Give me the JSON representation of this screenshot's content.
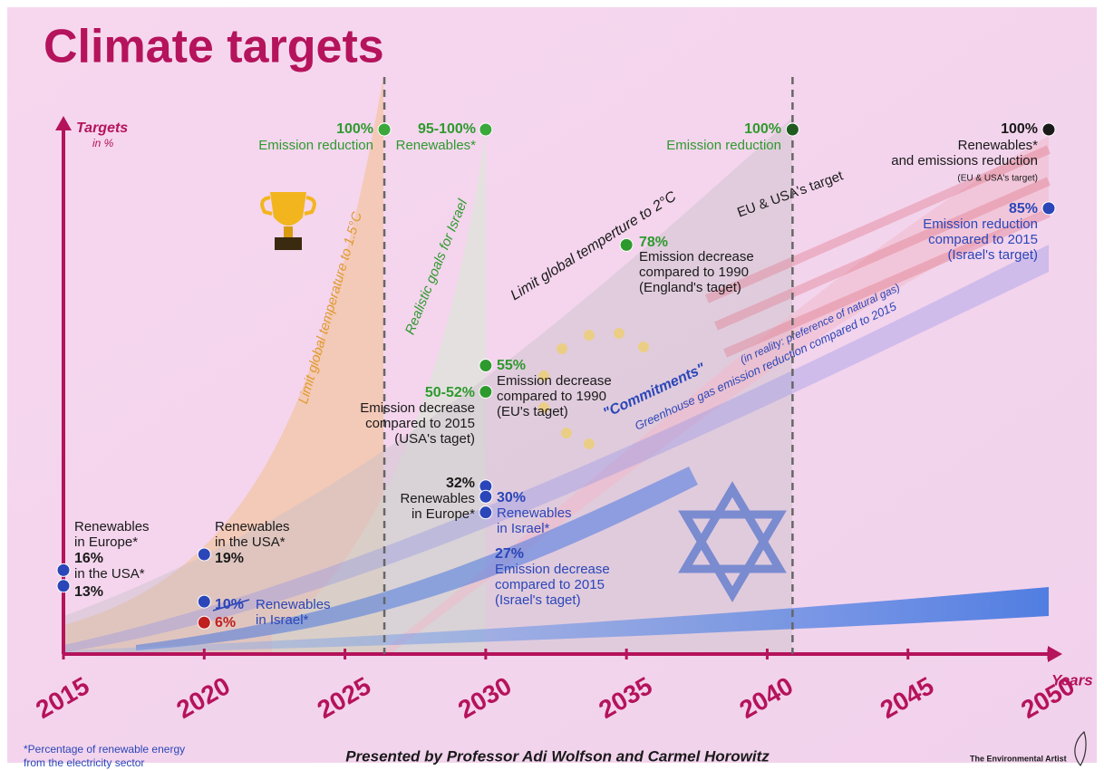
{
  "chart_data": {
    "type": "scatter",
    "title": "Climate targets",
    "y_label": "Targets",
    "y_unit": "in %",
    "x_label": "Years",
    "xlim": [
      2015,
      2050
    ],
    "xticks": [
      2015,
      2020,
      2025,
      2030,
      2035,
      2040,
      2045,
      2050
    ],
    "ylim": [
      0,
      100
    ],
    "points": [
      {
        "x": 2026.4,
        "value": 100,
        "value_label": "100%",
        "lines": [
          "Emission reduction"
        ],
        "color": "#3aa83a",
        "label_color": "#2e9a2e",
        "text_color": "#2e9a2e"
      },
      {
        "x": 2030,
        "value": 100,
        "value_label": "95-100%",
        "lines": [
          "Renewables*"
        ],
        "color": "#3aa83a",
        "label_color": "#2e9a2e",
        "text_color": "#2e9a2e"
      },
      {
        "x": 2040.9,
        "value": 100,
        "value_label": "100%",
        "lines": [
          "Emission reduction"
        ],
        "color": "#1f5a1f",
        "label_color": "#2e9a2e",
        "text_color": "#2e9a2e"
      },
      {
        "x": 2050,
        "value": 100,
        "value_label": "100%",
        "lines": [
          "Renewables*",
          "and emissions reduction"
        ],
        "note": "(EU & USA's target)",
        "color": "#1a1a1a",
        "label_color": "#1a1a1a",
        "text_color": "#1a1a1a"
      },
      {
        "x": 2050,
        "value": 85,
        "value_label": "85%",
        "lines": [
          "Emission reduction",
          "compared to 2015",
          "(Israel's target)"
        ],
        "color": "#2a46b8",
        "label_color": "#2a46b8",
        "text_color": "#2a46b8"
      },
      {
        "x": 2035,
        "value": 78,
        "value_label": "78%",
        "lines": [
          "Emission decrease",
          "compared to 1990",
          "(England's taget)"
        ],
        "color": "#2e9a2e",
        "label_color": "#2e9a2e",
        "text_color": "#1a1a1a"
      },
      {
        "x": 2030,
        "value": 55,
        "value_label": "55%",
        "lines": [
          "Emission decrease",
          "compared to 1990",
          "(EU's taget)"
        ],
        "color": "#2e9a2e",
        "label_color": "#2e9a2e",
        "text_color": "#1a1a1a"
      },
      {
        "x": 2030,
        "value": 50,
        "value_label": "50-52%",
        "lines": [
          "Emission decrease",
          "compared to 2015",
          "(USA's taget)"
        ],
        "color": "#2e9a2e",
        "label_color": "#2e9a2e",
        "text_color": "#1a1a1a"
      },
      {
        "x": 2030,
        "value": 32,
        "value_label": "32%",
        "lines": [
          "Renewables",
          "in Europe*"
        ],
        "color": "#2a46b8",
        "label_color": "#1a1a1a",
        "text_color": "#1a1a1a"
      },
      {
        "x": 2030,
        "value": 30,
        "value_label": "30%",
        "lines": [
          "Renewables",
          "in Israel*"
        ],
        "color": "#2a46b8",
        "label_color": "#2a46b8",
        "text_color": "#2a46b8"
      },
      {
        "x": 2030,
        "value": 27,
        "value_label": "27%",
        "lines": [
          "Emission decrease",
          "compared to 2015",
          "(Israel's taget)"
        ],
        "color": "#2a46b8",
        "label_color": "#2a46b8",
        "text_color": "#2a46b8"
      },
      {
        "x": 2020,
        "value": 19,
        "value_label": "19%",
        "lines": [
          "Renewables",
          "in the USA*"
        ],
        "color": "#2a46b8",
        "label_color": "#1a1a1a",
        "text_color": "#1a1a1a"
      },
      {
        "x": 2015,
        "value": 16,
        "value_label": "16%",
        "lines": [
          "Renewables",
          "in Europe*"
        ],
        "color": "#2a46b8",
        "label_color": "#1a1a1a",
        "text_color": "#1a1a1a"
      },
      {
        "x": 2015,
        "value": 13,
        "value_label": "13%",
        "lines": [
          "in the USA*"
        ],
        "color": "#2a46b8",
        "label_color": "#1a1a1a",
        "text_color": "#1a1a1a"
      },
      {
        "x": 2020,
        "value": 10,
        "value_label": "10%",
        "lines": [
          "Renewables",
          "in Israel*"
        ],
        "color": "#2a46b8",
        "label_color": "#2a46b8",
        "text_color": "#2a46b8"
      },
      {
        "x": 2020,
        "value": 6,
        "value_label": "6%",
        "lines": [],
        "color": "#c02020",
        "label_color": "#c02020",
        "text_color": "#c02020"
      }
    ],
    "band_labels": [
      "Limit global temperature to 1.5°C",
      "Realistic goals for Israel",
      "Limit global temperture to 2°C",
      "EU & USA's target"
    ],
    "commitments": {
      "title": "\"Commitments\"",
      "note": "(in reality: preference of natural gas)",
      "subtitle": "Greenhouse gas emission reduction compared to 2015"
    },
    "footnote": [
      "*Percentage of renewable energy",
      "from the electricity sector"
    ],
    "credit": "Presented by Professor Adi Wolfson and Carmel Horowitz",
    "logo": "The Environmental Artist"
  }
}
